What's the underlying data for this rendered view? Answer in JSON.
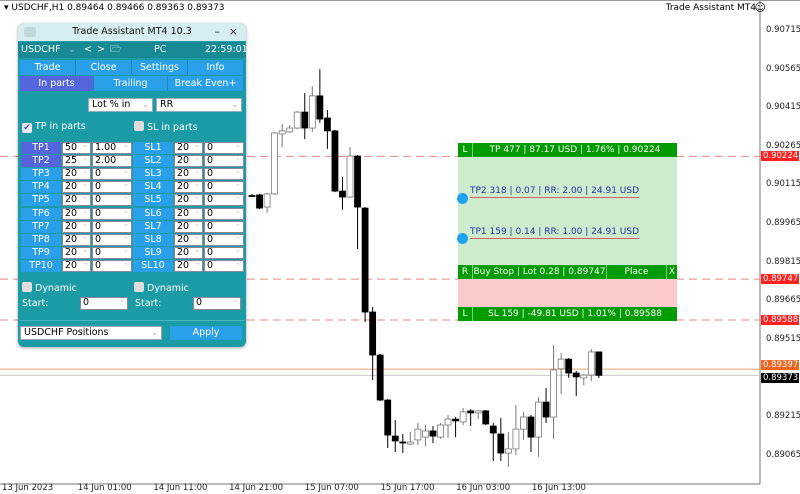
{
  "header": {
    "symbol_info": "USDCHF,H1  0.89464 0.89466 0.89363 0.89373",
    "indicator_name": "Trade Assistant MT4",
    "smiley_icon": "smiley-icon"
  },
  "price_axis": {
    "ticks": [
      "0.90715",
      "0.90565",
      "0.90415",
      "0.90265",
      "0.90115",
      "0.89965",
      "0.89815",
      "0.89665",
      "0.89515",
      "0.89215",
      "0.89065"
    ],
    "tick_values": [
      0.90715,
      0.90565,
      0.90415,
      0.90265,
      0.90115,
      0.89965,
      0.89815,
      0.89665,
      0.89515,
      0.89215,
      0.89065
    ],
    "levels": [
      {
        "text": "0.90224",
        "value": 0.90224,
        "color": "#ff2020"
      },
      {
        "text": "0.89747",
        "value": 0.89747,
        "color": "#ff2020"
      },
      {
        "text": "0.89588",
        "value": 0.89588,
        "color": "#ff2020"
      },
      {
        "text": "0.89397",
        "value": 0.89397,
        "color": "#f0641e"
      },
      {
        "text": "0.89373",
        "value": 0.89373,
        "color": "#000000"
      }
    ]
  },
  "time_axis": [
    "13 Jun 2023",
    "14 Jun 01:00",
    "14 Jun 11:00",
    "14 Jun 21:00",
    "15 Jun 07:00",
    "15 Jun 17:00",
    "16 Jun 03:00",
    "16 Jun 13:00"
  ],
  "chart_data": {
    "type": "candlestick",
    "symbol": "USDCHF",
    "timeframe": "H1",
    "ylim": [
      0.89,
      0.908
    ],
    "candles_ohlc": [
      [
        0.90072,
        0.90078,
        0.90066,
        0.9007
      ],
      [
        0.90074,
        0.90078,
        0.90019,
        0.90023
      ],
      [
        0.90027,
        0.90082,
        0.90004,
        0.90078
      ],
      [
        0.90078,
        0.90319,
        0.90074,
        0.90315
      ],
      [
        0.90311,
        0.9035,
        0.9026,
        0.90323
      ],
      [
        0.90319,
        0.90346,
        0.90315,
        0.90334
      ],
      [
        0.90334,
        0.904,
        0.9033,
        0.90396
      ],
      [
        0.90396,
        0.9047,
        0.90291,
        0.90334
      ],
      [
        0.90334,
        0.90497,
        0.90319,
        0.90459
      ],
      [
        0.90459,
        0.90563,
        0.90354,
        0.90369
      ],
      [
        0.90373,
        0.90404,
        0.90253,
        0.90323
      ],
      [
        0.90323,
        0.90327,
        0.90085,
        0.90089
      ],
      [
        0.90089,
        0.90144,
        0.90016,
        0.90066
      ],
      [
        0.90066,
        0.9026,
        0.90062,
        0.90225
      ],
      [
        0.90225,
        0.90229,
        0.89864,
        0.90027
      ],
      [
        0.90023,
        0.90027,
        0.8958,
        0.89619
      ],
      [
        0.89619,
        0.89639,
        0.89355,
        0.89452
      ],
      [
        0.89452,
        0.89456,
        0.89273,
        0.89277
      ],
      [
        0.89277,
        0.89281,
        0.89091,
        0.89141
      ],
      [
        0.89137,
        0.89199,
        0.89075,
        0.89118
      ],
      [
        0.89114,
        0.89145,
        0.89071,
        0.8911
      ],
      [
        0.89106,
        0.89153,
        0.89102,
        0.89114
      ],
      [
        0.89122,
        0.89188,
        0.89102,
        0.89164
      ],
      [
        0.89133,
        0.8918,
        0.89098,
        0.89157
      ],
      [
        0.89157,
        0.89176,
        0.8911,
        0.89137
      ],
      [
        0.89133,
        0.89188,
        0.89126,
        0.8918
      ],
      [
        0.8918,
        0.89219,
        0.8913,
        0.89203
      ],
      [
        0.89203,
        0.89211,
        0.89133,
        0.89196
      ],
      [
        0.89192,
        0.89246,
        0.8918,
        0.89231
      ],
      [
        0.89235,
        0.89242,
        0.89176,
        0.89227
      ],
      [
        0.89227,
        0.89238,
        0.89203,
        0.89235
      ],
      [
        0.89235,
        0.89238,
        0.8918,
        0.89184
      ],
      [
        0.89176,
        0.89188,
        0.8904,
        0.89149
      ],
      [
        0.89145,
        0.89207,
        0.8904,
        0.89071
      ],
      [
        0.89071,
        0.89153,
        0.89017,
        0.89087
      ],
      [
        0.89087,
        0.89258,
        0.89063,
        0.89164
      ],
      [
        0.89164,
        0.89231,
        0.89122,
        0.89211
      ],
      [
        0.89211,
        0.89219,
        0.89075,
        0.89133
      ],
      [
        0.89133,
        0.89289,
        0.89056,
        0.89269
      ],
      [
        0.89269,
        0.89324,
        0.89188,
        0.89211
      ],
      [
        0.89211,
        0.89491,
        0.89126,
        0.89394
      ],
      [
        0.89398,
        0.8946,
        0.893,
        0.89436
      ],
      [
        0.89436,
        0.8944,
        0.89363,
        0.89382
      ],
      [
        0.89382,
        0.8939,
        0.89293,
        0.89367
      ],
      [
        0.89363,
        0.89378,
        0.89335,
        0.89374
      ],
      [
        0.89374,
        0.89475,
        0.89351,
        0.89464
      ],
      [
        0.89464,
        0.89466,
        0.89363,
        0.89373
      ]
    ]
  },
  "panel": {
    "title": "Trade Assistant MT4 10.3",
    "minimize": "–",
    "close": "×",
    "symbol": "USDCHF",
    "prev": "<",
    "next": ">",
    "account": "PC",
    "time": "22:59:01",
    "tabs": [
      "Trade",
      "Close",
      "Settings",
      "Info"
    ],
    "subtabs": [
      "In parts",
      "Trailing",
      "Break Even+"
    ],
    "lot_mode": "Lot % in",
    "rr_mode": "RR",
    "tp_in_parts": "TP in parts",
    "tp_checked": true,
    "sl_in_parts": "SL in parts",
    "sl_checked": false,
    "tp_rows": [
      {
        "label": "TP1",
        "pct": "50",
        "val": "1.00"
      },
      {
        "label": "TP2",
        "pct": "25",
        "val": "2.00"
      },
      {
        "label": "TP3",
        "pct": "20",
        "val": "0"
      },
      {
        "label": "TP4",
        "pct": "20",
        "val": "0"
      },
      {
        "label": "TP5",
        "pct": "20",
        "val": "0"
      },
      {
        "label": "TP6",
        "pct": "20",
        "val": "0"
      },
      {
        "label": "TP7",
        "pct": "20",
        "val": "0"
      },
      {
        "label": "TP8",
        "pct": "20",
        "val": "0"
      },
      {
        "label": "TP9",
        "pct": "20",
        "val": "0"
      },
      {
        "label": "TP10",
        "pct": "20",
        "val": "0"
      }
    ],
    "sl_rows": [
      {
        "label": "SL1",
        "pct": "20",
        "val": "0"
      },
      {
        "label": "SL2",
        "pct": "20",
        "val": "0"
      },
      {
        "label": "SL3",
        "pct": "20",
        "val": "0"
      },
      {
        "label": "SL4",
        "pct": "20",
        "val": "0"
      },
      {
        "label": "SL5",
        "pct": "20",
        "val": "0"
      },
      {
        "label": "SL6",
        "pct": "20",
        "val": "0"
      },
      {
        "label": "SL7",
        "pct": "20",
        "val": "0"
      },
      {
        "label": "SL8",
        "pct": "20",
        "val": "0"
      },
      {
        "label": "SL9",
        "pct": "20",
        "val": "0"
      },
      {
        "label": "SL10",
        "pct": "20",
        "val": "0"
      }
    ],
    "dynamic": "Dynamic",
    "start": "Start:",
    "tp_start": "0",
    "sl_start": "0",
    "positions": "USDCHF Positions",
    "apply": "Apply"
  },
  "trade_box": {
    "tp_flag": "L",
    "tp_text": "TP 477 | 87.17 USD | 1.76% | 0.90224",
    "tp2": "TP2 318 | 0.07 | RR: 2.00 | 24.91 USD",
    "tp1": "TP1 159 | 0.14 | RR: 1.00 | 24.91 USD",
    "entry_flag": "R",
    "entry_text": "Buy Stop | Lot 0.28 | 0.89747",
    "place": "Place",
    "close": "X",
    "sl_flag": "L",
    "sl_text": "SL 159 | -49.81 USD | 1.01% | 0.89588"
  }
}
